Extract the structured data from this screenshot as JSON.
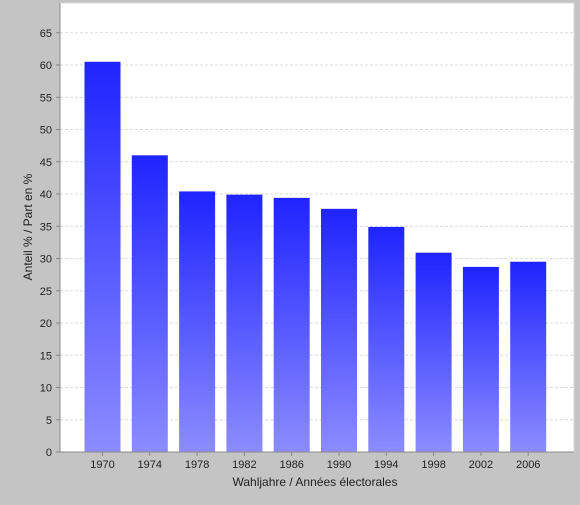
{
  "chart_data": {
    "type": "bar",
    "title": "",
    "xlabel": "Wahljahre / Années électorales",
    "ylabel": "Anteil % / Part en %",
    "categories": [
      "1970",
      "1974",
      "1978",
      "1982",
      "1986",
      "1990",
      "1994",
      "1998",
      "2002",
      "2006"
    ],
    "values": [
      60.5,
      46.0,
      40.4,
      39.9,
      39.4,
      37.7,
      34.9,
      30.9,
      28.7,
      29.5
    ],
    "ylim": [
      0,
      70
    ],
    "yticks": [
      0,
      5,
      10,
      15,
      20,
      25,
      30,
      35,
      40,
      45,
      50,
      55,
      60,
      65
    ],
    "grid": true,
    "legend": "none",
    "colors": {
      "background": "#c4c4c4",
      "plot_background": "#ffffff",
      "bar_top": "#1f24ff",
      "bar_bottom": "#8c8cff",
      "gridline": "#dcdcdc",
      "axis": "#888888",
      "text": "#222222"
    }
  }
}
